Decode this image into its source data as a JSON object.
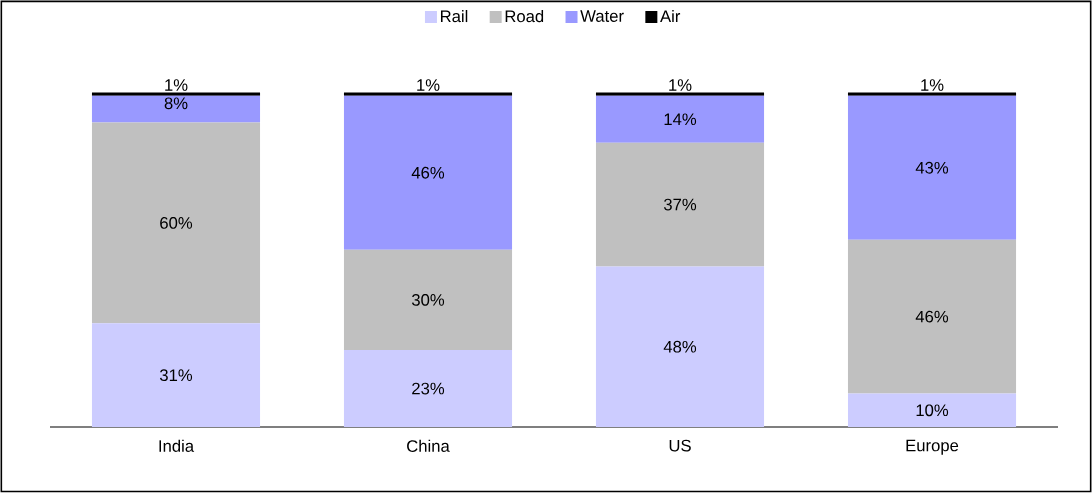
{
  "chart_data": {
    "type": "bar",
    "stacked": true,
    "legend": "top",
    "categories": [
      "India",
      "China",
      "US",
      "Europe"
    ],
    "series": [
      {
        "name": "Rail",
        "color": "#ccccff",
        "values": [
          31,
          23,
          48,
          10
        ],
        "value_labels": [
          "31%",
          "23%",
          "48%",
          "10%"
        ]
      },
      {
        "name": "Road",
        "color": "#c0c0c0",
        "values": [
          60,
          30,
          37,
          46
        ],
        "value_labels": [
          "60%",
          "30%",
          "37%",
          "46%"
        ]
      },
      {
        "name": "Water",
        "color": "#9999ff",
        "values": [
          8,
          46,
          14,
          43
        ],
        "value_labels": [
          "8%",
          "46%",
          "14%",
          "43%"
        ]
      },
      {
        "name": "Air",
        "color": "#000000",
        "values": [
          1,
          1,
          1,
          1
        ],
        "value_labels": [
          "1%",
          "1%",
          "1%",
          "1%"
        ]
      }
    ]
  }
}
